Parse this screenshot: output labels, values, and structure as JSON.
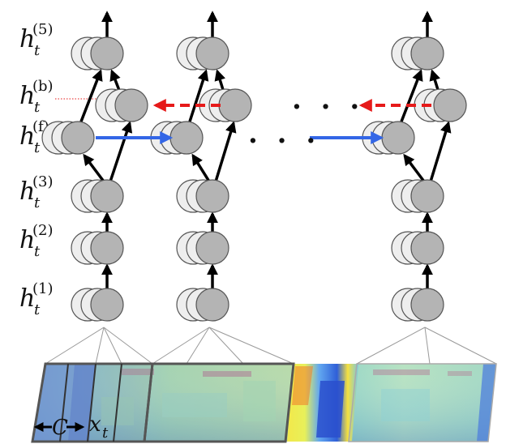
{
  "layer_labels": [
    {
      "id": "h5",
      "base": "h",
      "sub": "t",
      "sup": "(5)"
    },
    {
      "id": "hb",
      "base": "h",
      "sub": "t",
      "sup": "(b)"
    },
    {
      "id": "hf",
      "base": "h",
      "sub": "t",
      "sup": "(f)"
    },
    {
      "id": "h3",
      "base": "h",
      "sub": "t",
      "sup": "(3)"
    },
    {
      "id": "h2",
      "base": "h",
      "sub": "t",
      "sup": "(2)"
    },
    {
      "id": "h1",
      "base": "h",
      "sub": "t",
      "sup": "(1)"
    }
  ],
  "ellipsis_text": ". . .",
  "context_label": "C",
  "input_label": {
    "base": "x",
    "sub": "t"
  },
  "colors": {
    "node_fill": "#b4b4b4",
    "node_back_fill": "#eeeeee",
    "node_stroke": "#555555",
    "forward_arrow": "#3366e6",
    "backward_arrow": "#e61a1a",
    "up_arrow": "#000000",
    "spectrogram_base": "#8fd3b0"
  }
}
